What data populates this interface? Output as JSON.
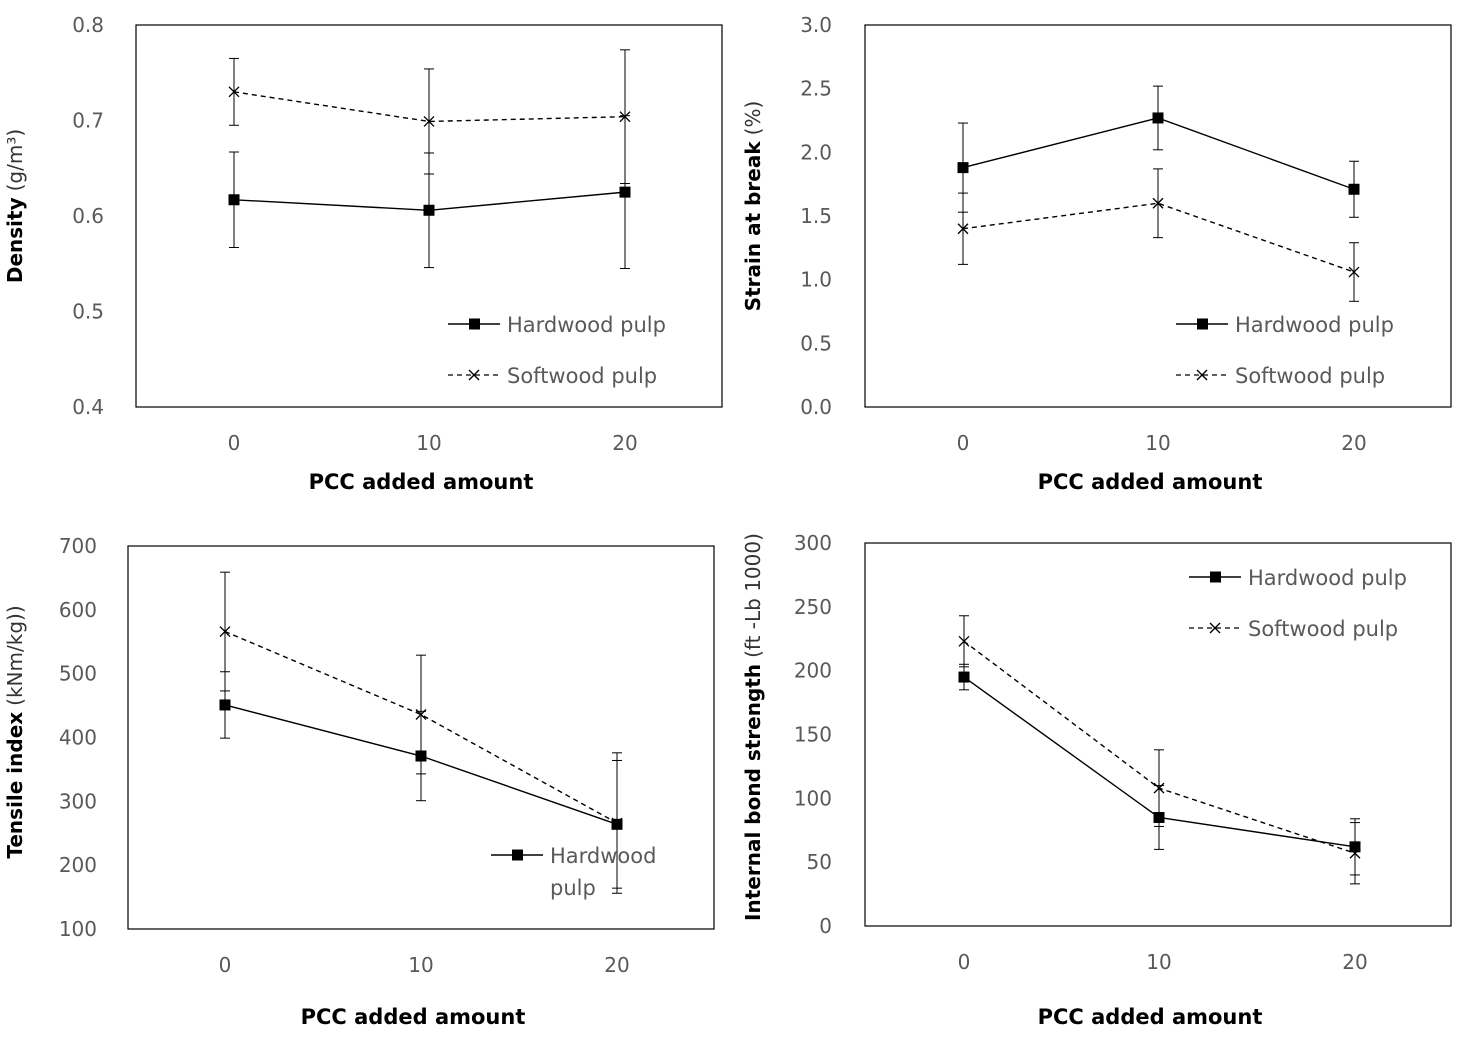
{
  "chart_data": [
    {
      "type": "line",
      "x": [
        "0",
        "10",
        "20"
      ],
      "xlabel": "PCC added amount",
      "ylabel_bold": "Density",
      "ylabel_unit": "(g/m³)",
      "ylim": [
        0.4,
        0.8
      ],
      "yticks": [
        "0.4",
        "0.5",
        "0.6",
        "0.7",
        "0.8"
      ],
      "legend_position": "bottom-right",
      "series": [
        {
          "name": "Hardwood pulp",
          "values": [
            0.617,
            0.606,
            0.625
          ],
          "errors": [
            0.05,
            0.06,
            0.08
          ]
        },
        {
          "name": "Softwood pulp",
          "values": [
            0.73,
            0.699,
            0.704
          ],
          "errors": [
            0.035,
            0.055,
            0.07
          ]
        }
      ]
    },
    {
      "type": "line",
      "x": [
        "0",
        "10",
        "20"
      ],
      "xlabel": "PCC added amount",
      "ylabel_bold": "Strain at break",
      "ylabel_unit": "(%)",
      "ylim": [
        0,
        3
      ],
      "yticks": [
        "0.0",
        "0.5",
        "1.0",
        "1.5",
        "2.0",
        "2.5",
        "3.0"
      ],
      "legend_position": "bottom-right",
      "series": [
        {
          "name": "Hardwood pulp",
          "values": [
            1.88,
            2.27,
            1.71
          ],
          "errors": [
            0.35,
            0.25,
            0.22
          ]
        },
        {
          "name": "Softwood pulp",
          "values": [
            1.4,
            1.6,
            1.06
          ],
          "errors": [
            0.28,
            0.27,
            0.23
          ]
        }
      ]
    },
    {
      "type": "line",
      "x": [
        "0",
        "10",
        "20"
      ],
      "xlabel": "PCC added amount",
      "ylabel_bold": "Tensile index",
      "ylabel_unit": "(kNm/kg))",
      "ylim": [
        100,
        700
      ],
      "yticks": [
        "100",
        "200",
        "300",
        "400",
        "500",
        "600",
        "700"
      ],
      "legend_position": "bottom-right",
      "legend_lines": [
        "Hardwood",
        "pulp"
      ],
      "series": [
        {
          "name": "Hardwood pulp",
          "values": [
            451,
            371,
            264
          ],
          "errors": [
            52,
            70,
            100
          ]
        },
        {
          "name": "",
          "values": [
            566,
            436,
            266
          ],
          "errors": [
            93,
            93,
            110
          ]
        }
      ]
    },
    {
      "type": "line",
      "x": [
        "0",
        "10",
        "20"
      ],
      "xlabel": "PCC added amount",
      "ylabel_bold": "Internal bond strength",
      "ylabel_unit": "(ft -Lb 1000)",
      "ylim": [
        0,
        300
      ],
      "yticks": [
        "0",
        "50",
        "100",
        "150",
        "200",
        "250",
        "300"
      ],
      "legend_position": "top-right",
      "series": [
        {
          "name": "Hardwood pulp",
          "values": [
            195,
            85,
            62
          ],
          "errors": [
            10,
            25,
            22
          ]
        },
        {
          "name": "Softwood pulp",
          "values": [
            223,
            108,
            57
          ],
          "errors": [
            20,
            30,
            24
          ]
        }
      ]
    }
  ],
  "styles": {
    "hardwood": {
      "color": "#000000",
      "marker": "filled-square",
      "line": "solid"
    },
    "softwood": {
      "color": "#000000",
      "marker": "x",
      "line": "dashed"
    }
  }
}
